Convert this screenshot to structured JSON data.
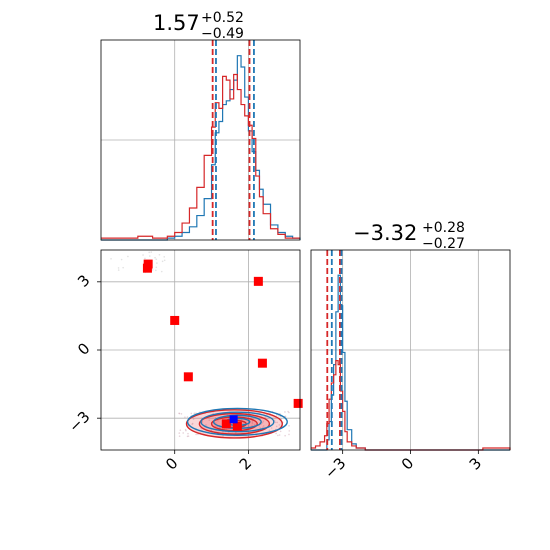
{
  "chart_data": {
    "type": "corner",
    "grid": true,
    "colors": {
      "blue": "#1f77b4",
      "red": "#d62728",
      "marker_red": "#ff0000",
      "marker_blue": "#0000ff"
    },
    "panels": {
      "hist_x": {
        "title": {
          "value": "1.57",
          "plus": "+0.52",
          "minus": "−0.49"
        },
        "xlim": [
          -2,
          3.4
        ],
        "x": [
          -2.0,
          -1.8,
          -1.6,
          -1.4,
          -1.2,
          -1.0,
          -0.8,
          -0.6,
          -0.4,
          -0.2,
          0.0,
          0.2,
          0.4,
          0.6,
          0.8,
          1.0,
          1.1,
          1.2,
          1.3,
          1.4,
          1.5,
          1.6,
          1.7,
          1.8,
          1.9,
          2.0,
          2.1,
          2.2,
          2.3,
          2.4,
          2.6,
          2.8,
          3.0,
          3.2,
          3.4
        ],
        "series": [
          {
            "color": "#1f77b4",
            "values": [
              0,
              0,
              0,
              0,
              0,
              0,
              0,
              0,
              0,
              1,
              2,
              4,
              7,
              13,
              22,
              40,
              57,
              63,
              72,
              74,
              80,
              85,
              98,
              92,
              76,
              58,
              47,
              37,
              27,
              19,
              8,
              4,
              2,
              1,
              0
            ]
          },
          {
            "color": "#d62728",
            "values": [
              1,
              1,
              1,
              1,
              1,
              2,
              2,
              1,
              1,
              2,
              4,
              9,
              17,
              28,
              45,
              60,
              73,
              70,
              87,
              85,
              75,
              88,
              80,
              72,
              66,
              61,
              54,
              34,
              23,
              14,
              6,
              3,
              1,
              1,
              1
            ]
          }
        ],
        "quantile_lines": [
          {
            "color": "#d62728",
            "values": [
              1.03,
              2.03
            ]
          },
          {
            "color": "#1f77b4",
            "values": [
              1.12,
              2.15
            ]
          }
        ]
      },
      "hist_y": {
        "title": {
          "value": "−3.32",
          "plus": "+0.28",
          "minus": "−0.27"
        },
        "xlim": [
          -4.4,
          4.4
        ],
        "xticks": [
          -3,
          0,
          3
        ],
        "x": [
          -4.4,
          -4.2,
          -4.0,
          -3.8,
          -3.7,
          -3.6,
          -3.5,
          -3.4,
          -3.3,
          -3.2,
          -3.1,
          -3.0,
          -2.9,
          -2.8,
          -2.6,
          -2.4,
          -2.0,
          0.0,
          2.0,
          3.0,
          3.2,
          4.4
        ],
        "series": [
          {
            "color": "#1f77b4",
            "values": [
              0,
              0,
              0,
              0,
              5,
              14,
              27,
              42,
              68,
              86,
              71,
              48,
              24,
              10,
              3,
              1,
              0,
              0,
              0,
              0,
              0,
              0
            ]
          },
          {
            "color": "#d62728",
            "values": [
              1,
              2,
              4,
              7,
              13,
              25,
              33,
              37,
              44,
              42,
              29,
              19,
              9,
              4,
              2,
              1,
              0,
              0,
              0,
              0,
              1,
              0
            ]
          }
        ],
        "quantile_lines": [
          {
            "color": "#d62728",
            "values": [
              -3.68,
              -3.12
            ]
          },
          {
            "color": "#1f77b4",
            "values": [
              -3.48,
              -3.05
            ]
          }
        ]
      },
      "joint": {
        "xlim": [
          -2,
          3.4
        ],
        "ylim": [
          -4.4,
          4.4
        ],
        "xticks": [
          0,
          2
        ],
        "yticks": [
          3,
          0,
          -3
        ],
        "center": [
          1.62,
          -3.25
        ],
        "contour_levels": [
          {
            "rx": 1.3,
            "ry": 0.62
          },
          {
            "rx": 0.95,
            "ry": 0.45
          },
          {
            "rx": 0.62,
            "ry": 0.3
          },
          {
            "rx": 0.32,
            "ry": 0.16
          }
        ],
        "red_points": [
          [
            -0.72,
            3.78
          ],
          [
            -0.74,
            3.6
          ],
          [
            0.0,
            1.3
          ],
          [
            2.27,
            3.02
          ],
          [
            0.37,
            -1.18
          ],
          [
            2.38,
            -0.58
          ],
          [
            3.35,
            -2.35
          ],
          [
            1.7,
            -3.35
          ],
          [
            1.4,
            -3.25
          ]
        ],
        "blue_points": [
          [
            1.6,
            -3.05
          ]
        ]
      }
    }
  }
}
